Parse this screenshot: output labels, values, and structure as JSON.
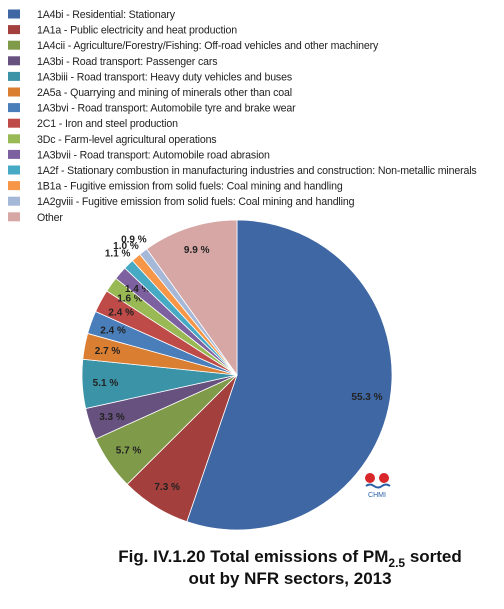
{
  "chart_data": {
    "type": "pie",
    "title": [
      "Fig. IV.1.20  Total emissions of PM",
      "2.5",
      " sorted",
      "out by NFR sectors, 2013"
    ],
    "logo": "CHMI",
    "categories": [
      "1A4bi - Residential: Stationary",
      "1A1a - Public electricity and heat production",
      "1A4cii - Agriculture/Forestry/Fishing: Off-road vehicles and other machinery",
      "1A3bi - Road transport: Passenger cars",
      "1A3biii - Road transport: Heavy duty vehicles and buses",
      "2A5a - Quarrying and mining of minerals other than coal",
      "1A3bvi - Road transport: Automobile tyre and brake wear",
      "2C1 - Iron and steel production",
      "3Dc - Farm-level agricultural operations",
      "1A3bvii - Road transport: Automobile road abrasion",
      "1A2f - Stationary combustion in manufacturing industries and construction: Non-metallic minerals",
      "1B1a - Fugitive emission from solid fuels: Coal mining and handling",
      "1A2gviii - Fugitive emission from solid fuels: Coal mining and handling",
      "Other"
    ],
    "values": [
      55.3,
      7.3,
      5.7,
      3.3,
      5.1,
      2.7,
      2.4,
      2.4,
      1.6,
      1.4,
      1.1,
      1.0,
      0.9,
      9.9
    ],
    "value_labels": [
      "55.3 %",
      "7.3 %",
      "5.7 %",
      "3.3 %",
      "5.1 %",
      "2.7 %",
      "2.4 %",
      "2.4 %",
      "1.6 %",
      "1.4 %",
      "1.1 %",
      "1.0 %",
      "0.9 %",
      "9.9 %"
    ],
    "colors": [
      "#3f67a3",
      "#a33f3c",
      "#7f9a48",
      "#67517f",
      "#3b93a7",
      "#da7e32",
      "#4a7ebb",
      "#be4b48",
      "#98b954",
      "#7d60a0",
      "#46aac5",
      "#f79646",
      "#a6b8d8",
      "#d7a7a6"
    ],
    "legend": "top-left"
  }
}
